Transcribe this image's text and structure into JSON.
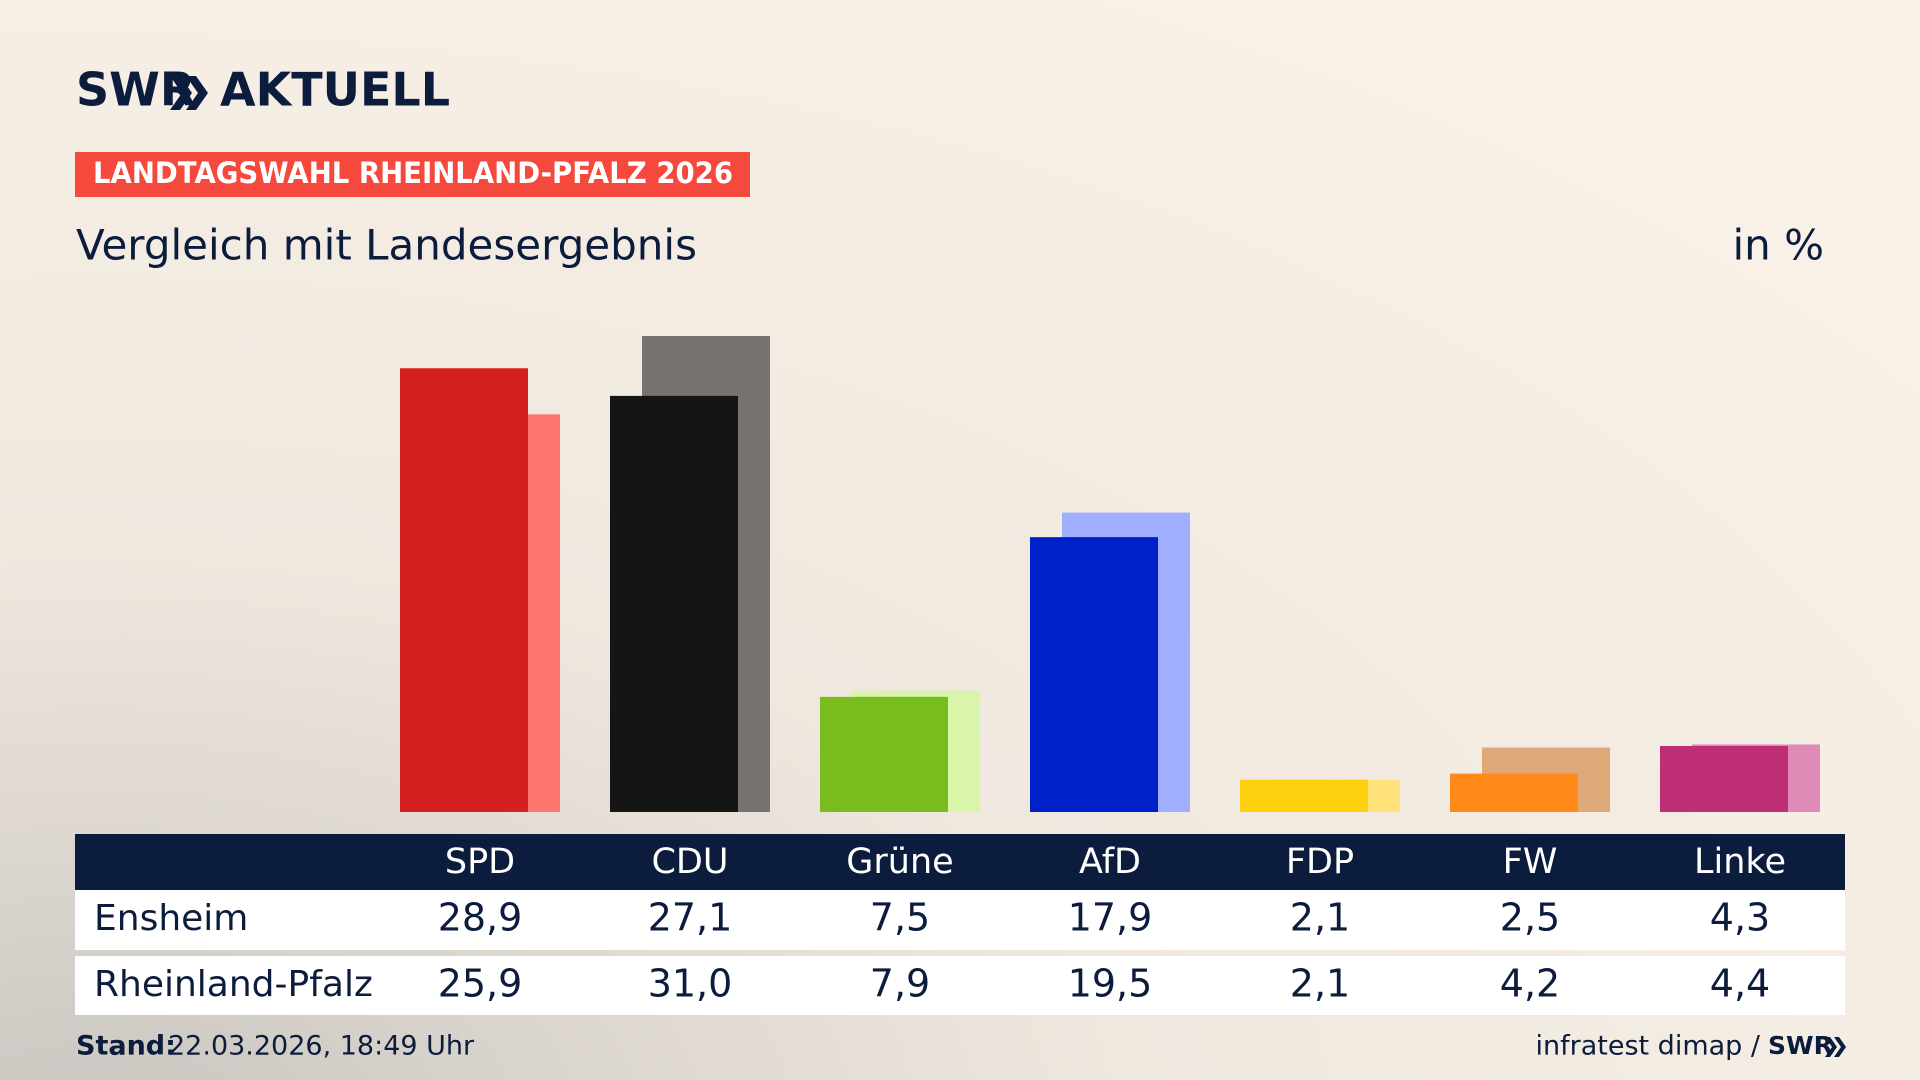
{
  "header": {
    "logo": "SWR",
    "logo_suffix": "AKTUELL"
  },
  "chart_data": {
    "type": "bar",
    "kicker": "LANDTAGSWAHL RHEINLAND-PFALZ 2026",
    "title": "Vergleich mit Landesergebnis",
    "unit_label": "in %",
    "categories": [
      "SPD",
      "CDU",
      "Grüne",
      "AfD",
      "FDP",
      "FW",
      "Linke"
    ],
    "series": [
      {
        "name": "Ensheim",
        "colors": [
          "#d62020",
          "#151515",
          "#78bc1e",
          "#0020c8",
          "#ffd010",
          "#ff8a1a",
          "#bd2e74"
        ],
        "values": [
          28.9,
          27.1,
          7.5,
          17.9,
          2.1,
          2.5,
          4.3
        ],
        "value_labels": [
          "28,9",
          "27,1",
          "7,5",
          "17,9",
          "2,1",
          "2,5",
          "4,3"
        ]
      },
      {
        "name": "Rheinland-Pfalz",
        "colors": [
          "#ff7570",
          "#767270",
          "#d8f5aa",
          "#a0aeff",
          "#ffe37a",
          "#dfa878",
          "#e08ab8"
        ],
        "values": [
          25.9,
          31.0,
          7.9,
          19.5,
          2.1,
          4.2,
          4.4
        ],
        "value_labels": [
          "25,9",
          "31,0",
          "7,9",
          "19,5",
          "2,1",
          "4,2",
          "4,4"
        ]
      }
    ]
  },
  "footer": {
    "stand_label": "Stand:",
    "stand": "22.03.2026, 18:49 Uhr",
    "source": "infratest dimap /",
    "logo": "SWR"
  }
}
